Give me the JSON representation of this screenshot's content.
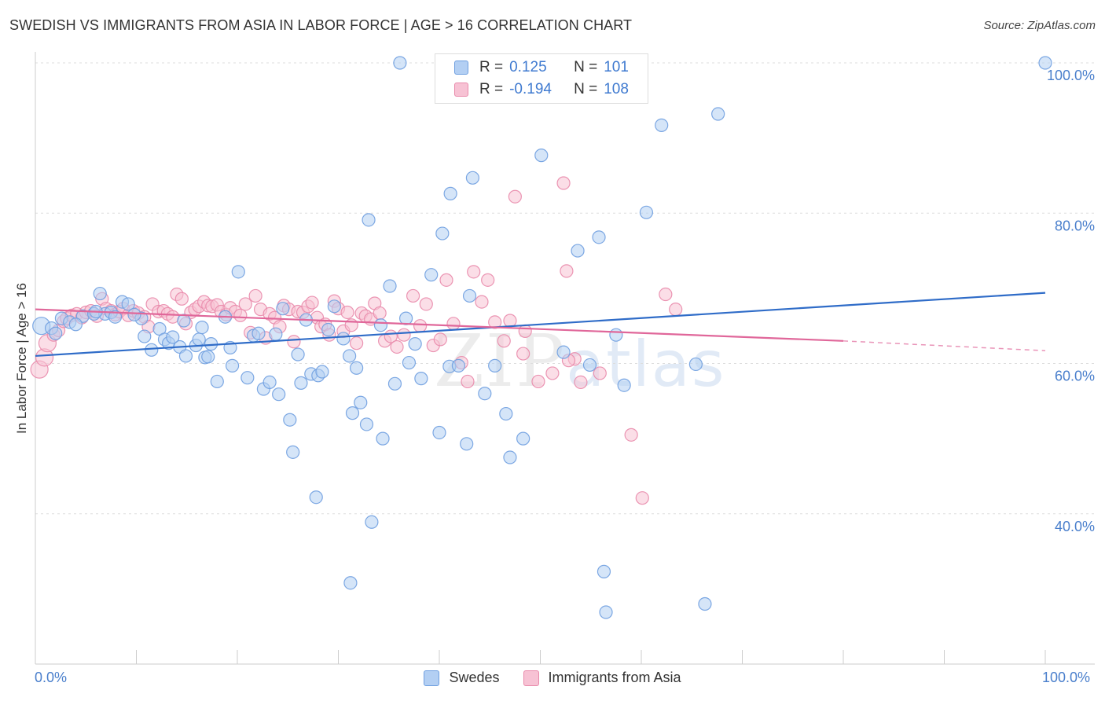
{
  "header": {
    "title": "SWEDISH VS IMMIGRANTS FROM ASIA IN LABOR FORCE | AGE > 16 CORRELATION CHART",
    "source": "Source: ZipAtlas.com"
  },
  "watermark": {
    "zip": "ZIP",
    "atlas": "atlas"
  },
  "colors": {
    "swedes_fill": "#b3cff3",
    "swedes_stroke": "#6f9fe0",
    "swedes_line": "#2f6cc8",
    "asia_fill": "#f7c2d4",
    "asia_stroke": "#e98aab",
    "asia_line": "#e0679a",
    "grid": "#dddddd",
    "axis_text": "#4a7fcc"
  },
  "legend": {
    "rows": [
      {
        "r_label": "R =",
        "r_value": "0.125",
        "n_label": "N =",
        "n_value": "101"
      },
      {
        "r_label": "R =",
        "r_value": "-0.194",
        "n_label": "N =",
        "n_value": "108"
      }
    ]
  },
  "chart_data": {
    "type": "scatter",
    "title": "SWEDISH VS IMMIGRANTS FROM ASIA IN LABOR FORCE | AGE > 16 CORRELATION CHART",
    "xlabel": "",
    "ylabel": "In Labor Force | Age > 16",
    "xlim": [
      0,
      100
    ],
    "ylim": [
      20,
      100
    ],
    "x_tick_labels": [
      "0.0%",
      "100.0%"
    ],
    "y_ticks": [
      40,
      60,
      80,
      100
    ],
    "y_tick_labels": [
      "40.0%",
      "60.0%",
      "80.0%",
      "100.0%"
    ],
    "grid": true,
    "legend_position": "bottom-center",
    "series": [
      {
        "name": "Swedes",
        "r": 0.125,
        "n": 101,
        "trend": {
          "x": [
            0,
            100
          ],
          "y": [
            61.0,
            69.4
          ]
        },
        "points": [
          [
            0.6,
            65.0
          ],
          [
            1.6,
            64.7
          ],
          [
            2.6,
            66.0
          ],
          [
            3.4,
            65.5
          ],
          [
            4.7,
            66.3
          ],
          [
            5.8,
            66.6
          ],
          [
            6.4,
            69.3
          ],
          [
            6.9,
            66.6
          ],
          [
            7.5,
            66.8
          ],
          [
            7.9,
            66.2
          ],
          [
            8.6,
            68.2
          ],
          [
            9.2,
            67.9
          ],
          [
            10.5,
            66.0
          ],
          [
            10.8,
            63.6
          ],
          [
            11.5,
            61.8
          ],
          [
            12.3,
            64.6
          ],
          [
            12.8,
            63.2
          ],
          [
            13.2,
            62.7
          ],
          [
            14.3,
            62.2
          ],
          [
            14.7,
            65.7
          ],
          [
            14.9,
            61.0
          ],
          [
            15.9,
            62.4
          ],
          [
            16.2,
            63.2
          ],
          [
            16.8,
            60.8
          ],
          [
            17.1,
            60.9
          ],
          [
            17.4,
            62.6
          ],
          [
            18.0,
            57.6
          ],
          [
            18.8,
            66.2
          ],
          [
            19.5,
            59.7
          ],
          [
            20.1,
            72.2
          ],
          [
            21.0,
            58.1
          ],
          [
            21.6,
            63.7
          ],
          [
            22.1,
            64.0
          ],
          [
            22.6,
            56.6
          ],
          [
            23.2,
            57.5
          ],
          [
            24.1,
            55.9
          ],
          [
            24.5,
            67.3
          ],
          [
            25.2,
            52.5
          ],
          [
            25.5,
            48.2
          ],
          [
            26.3,
            57.4
          ],
          [
            26.8,
            65.8
          ],
          [
            27.3,
            58.6
          ],
          [
            28.0,
            58.4
          ],
          [
            27.8,
            42.2
          ],
          [
            28.4,
            58.9
          ],
          [
            29.6,
            67.6
          ],
          [
            30.5,
            63.3
          ],
          [
            31.1,
            61.0
          ],
          [
            31.2,
            30.8
          ],
          [
            31.4,
            53.4
          ],
          [
            32.2,
            54.8
          ],
          [
            32.8,
            51.9
          ],
          [
            33.3,
            38.9
          ],
          [
            33.0,
            79.1
          ],
          [
            34.4,
            50.0
          ],
          [
            34.2,
            65.1
          ],
          [
            35.1,
            70.3
          ],
          [
            36.1,
            100.0
          ],
          [
            36.7,
            66.0
          ],
          [
            37.6,
            62.6
          ],
          [
            38.2,
            58.0
          ],
          [
            39.2,
            71.8
          ],
          [
            40.0,
            50.8
          ],
          [
            40.3,
            77.3
          ],
          [
            41.0,
            59.6
          ],
          [
            41.1,
            82.6
          ],
          [
            41.9,
            59.7
          ],
          [
            42.7,
            49.3
          ],
          [
            43.0,
            69.0
          ],
          [
            43.3,
            84.7
          ],
          [
            45.5,
            59.7
          ],
          [
            46.6,
            53.3
          ],
          [
            47.0,
            47.5
          ],
          [
            48.3,
            50.0
          ],
          [
            50.1,
            87.7
          ],
          [
            53.7,
            75.0
          ],
          [
            54.9,
            59.8
          ],
          [
            55.8,
            76.8
          ],
          [
            56.3,
            32.3
          ],
          [
            56.5,
            26.9
          ],
          [
            58.3,
            57.1
          ],
          [
            60.5,
            80.1
          ],
          [
            62.0,
            91.7
          ],
          [
            65.4,
            59.9
          ],
          [
            66.3,
            28.0
          ],
          [
            67.6,
            93.2
          ],
          [
            100.0,
            100.0
          ],
          [
            2.0,
            64.0
          ],
          [
            4.0,
            65.2
          ],
          [
            6.0,
            66.9
          ],
          [
            9.8,
            66.5
          ],
          [
            13.6,
            63.5
          ],
          [
            16.5,
            64.8
          ],
          [
            19.3,
            62.1
          ],
          [
            23.8,
            63.9
          ],
          [
            26.0,
            61.2
          ],
          [
            29.0,
            64.5
          ],
          [
            31.8,
            59.4
          ],
          [
            35.6,
            57.3
          ],
          [
            37.0,
            60.1
          ],
          [
            44.5,
            56.0
          ],
          [
            52.3,
            61.5
          ],
          [
            57.5,
            63.8
          ]
        ]
      },
      {
        "name": "Immigrants from Asia",
        "r": -0.194,
        "n": 108,
        "trend": {
          "x": [
            0,
            80
          ],
          "y": [
            67.2,
            63.0
          ],
          "dashed_to": [
            100,
            61.7
          ]
        },
        "points": [
          [
            0.4,
            59.2
          ],
          [
            0.9,
            60.8
          ],
          [
            1.2,
            62.7
          ],
          [
            1.8,
            63.8
          ],
          [
            2.3,
            64.4
          ],
          [
            2.8,
            65.6
          ],
          [
            3.1,
            66.0
          ],
          [
            3.6,
            66.4
          ],
          [
            4.1,
            66.6
          ],
          [
            4.6,
            66.1
          ],
          [
            5.0,
            66.8
          ],
          [
            5.5,
            67.0
          ],
          [
            6.1,
            66.3
          ],
          [
            6.6,
            68.6
          ],
          [
            7.0,
            67.3
          ],
          [
            7.5,
            67.0
          ],
          [
            7.9,
            66.5
          ],
          [
            8.3,
            66.9
          ],
          [
            8.7,
            67.3
          ],
          [
            9.2,
            66.4
          ],
          [
            9.7,
            67.0
          ],
          [
            10.2,
            66.7
          ],
          [
            10.8,
            66.2
          ],
          [
            11.2,
            64.9
          ],
          [
            11.6,
            67.9
          ],
          [
            12.2,
            66.9
          ],
          [
            12.7,
            67.0
          ],
          [
            13.1,
            66.6
          ],
          [
            13.6,
            66.2
          ],
          [
            14.0,
            69.2
          ],
          [
            14.5,
            68.6
          ],
          [
            14.9,
            65.3
          ],
          [
            15.4,
            66.8
          ],
          [
            15.8,
            67.2
          ],
          [
            16.2,
            67.6
          ],
          [
            16.7,
            68.2
          ],
          [
            17.1,
            67.7
          ],
          [
            17.5,
            67.6
          ],
          [
            18.0,
            67.8
          ],
          [
            18.4,
            66.9
          ],
          [
            18.9,
            66.5
          ],
          [
            19.3,
            67.4
          ],
          [
            19.8,
            66.9
          ],
          [
            20.3,
            66.4
          ],
          [
            20.8,
            67.9
          ],
          [
            21.3,
            64.1
          ],
          [
            21.8,
            69.0
          ],
          [
            22.3,
            67.2
          ],
          [
            22.8,
            63.4
          ],
          [
            23.2,
            66.6
          ],
          [
            23.7,
            66.1
          ],
          [
            24.2,
            64.9
          ],
          [
            24.6,
            67.7
          ],
          [
            25.1,
            67.2
          ],
          [
            25.6,
            62.9
          ],
          [
            26.0,
            66.9
          ],
          [
            26.5,
            66.8
          ],
          [
            27.0,
            67.6
          ],
          [
            27.4,
            68.1
          ],
          [
            27.9,
            66.1
          ],
          [
            28.3,
            64.9
          ],
          [
            28.7,
            65.2
          ],
          [
            29.1,
            63.8
          ],
          [
            29.6,
            68.3
          ],
          [
            30.0,
            67.3
          ],
          [
            30.5,
            64.3
          ],
          [
            30.9,
            66.8
          ],
          [
            31.3,
            65.1
          ],
          [
            31.8,
            62.7
          ],
          [
            32.3,
            66.7
          ],
          [
            32.7,
            66.3
          ],
          [
            33.2,
            65.9
          ],
          [
            33.6,
            68.0
          ],
          [
            34.1,
            66.7
          ],
          [
            34.6,
            63.0
          ],
          [
            35.2,
            63.6
          ],
          [
            35.8,
            62.2
          ],
          [
            36.5,
            63.8
          ],
          [
            37.4,
            69.0
          ],
          [
            38.1,
            65.0
          ],
          [
            38.7,
            67.9
          ],
          [
            39.4,
            62.4
          ],
          [
            40.1,
            63.2
          ],
          [
            40.7,
            71.1
          ],
          [
            41.4,
            65.3
          ],
          [
            42.2,
            60.1
          ],
          [
            42.8,
            57.6
          ],
          [
            43.4,
            72.2
          ],
          [
            44.2,
            68.2
          ],
          [
            44.8,
            71.1
          ],
          [
            45.5,
            65.5
          ],
          [
            46.4,
            63.0
          ],
          [
            47.0,
            65.7
          ],
          [
            47.5,
            82.2
          ],
          [
            48.5,
            64.3
          ],
          [
            48.3,
            61.3
          ],
          [
            49.8,
            57.6
          ],
          [
            51.2,
            58.7
          ],
          [
            52.3,
            84.0
          ],
          [
            52.6,
            72.3
          ],
          [
            53.4,
            60.6
          ],
          [
            54.0,
            57.5
          ],
          [
            55.9,
            58.7
          ],
          [
            59.0,
            50.5
          ],
          [
            60.1,
            42.1
          ],
          [
            62.4,
            69.2
          ],
          [
            63.4,
            67.2
          ],
          [
            52.8,
            60.4
          ]
        ]
      }
    ]
  },
  "bottom_legend": {
    "items": [
      {
        "label": "Swedes"
      },
      {
        "label": "Immigrants from Asia"
      }
    ]
  }
}
